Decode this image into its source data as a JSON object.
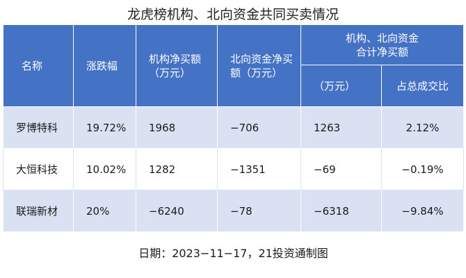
{
  "title": "龙虎榜机构、北向资金共同买卖情况",
  "header": {
    "name": "名称",
    "change": "涨跌幅",
    "inst_net_line1": "机构净买额",
    "inst_net_line2": "（万元）",
    "north_net_line1": "北向资金净买",
    "north_net_line2": "额（万元）",
    "combined_group_line1": "机构、北向资金",
    "combined_group_line2": "合计净买额",
    "combined_unit": "（万元）",
    "combined_ratio": "占总成交比"
  },
  "rows": [
    {
      "name": "罗博特科",
      "change": "19.72%",
      "inst_net": "1968",
      "north_net": "−706",
      "combined_net": "1263",
      "ratio": "2.12%"
    },
    {
      "name": "大恒科技",
      "change": "10.02%",
      "inst_net": "1282",
      "north_net": "−1351",
      "combined_net": "−69",
      "ratio": "−0.19%"
    },
    {
      "name": "联瑞新材",
      "change": "20%",
      "inst_net": "−6240",
      "north_net": "−78",
      "combined_net": "−6318",
      "ratio": "−9.84%"
    }
  ],
  "footer": "日期：2023−11−17，21投资通制图",
  "colors": {
    "header_bg": "#4472c4",
    "band_bg": "#d9e1f2"
  }
}
